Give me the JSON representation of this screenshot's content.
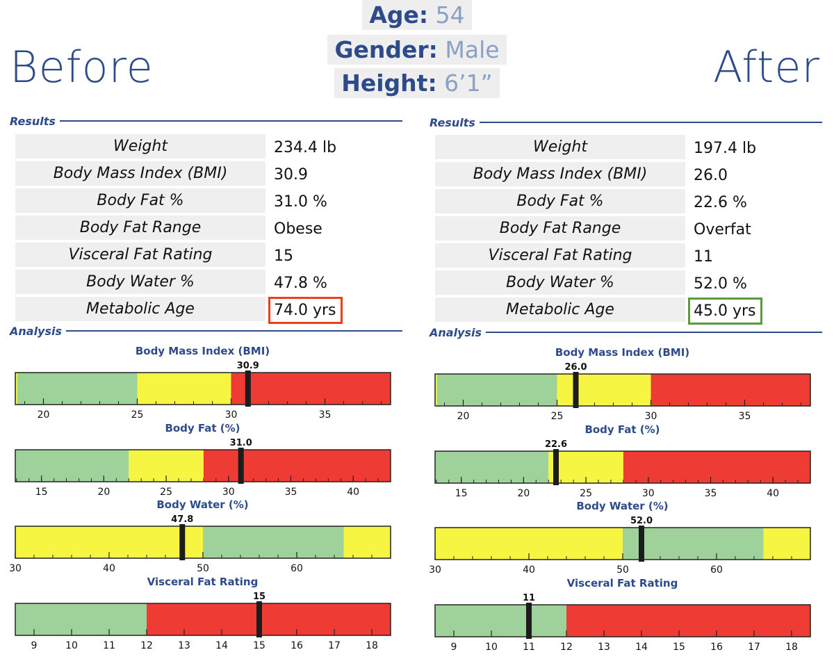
{
  "header": {
    "before_title": "Before",
    "after_title": "After",
    "info": [
      {
        "key": "Age:",
        "value": "54"
      },
      {
        "key": "Gender:",
        "value": "Male"
      },
      {
        "key": "Height:",
        "value": "6’1”"
      }
    ]
  },
  "colors": {
    "heading_blue": "#2d4a8a",
    "zone_green": "#9ed29a",
    "zone_yellow": "#f5f542",
    "zone_red": "#ee3b33",
    "highlight_red": "#e8401c",
    "highlight_green": "#5a9a3a"
  },
  "labels": {
    "results": "Results",
    "analysis": "Analysis"
  },
  "before": {
    "results": [
      {
        "label": "Weight",
        "value": "234.4 lb"
      },
      {
        "label": "Body Mass Index (BMI)",
        "value": "30.9"
      },
      {
        "label": "Body Fat %",
        "value": "31.0 %"
      },
      {
        "label": "Body Fat Range",
        "value": "Obese"
      },
      {
        "label": "Visceral Fat Rating",
        "value": "15"
      },
      {
        "label": "Body Water %",
        "value": "47.8 %"
      },
      {
        "label": "Metabolic Age",
        "value": "74.0 yrs"
      }
    ]
  },
  "after": {
    "results": [
      {
        "label": "Weight",
        "value": "197.4 lb"
      },
      {
        "label": "Body Mass Index (BMI)",
        "value": "26.0"
      },
      {
        "label": "Body Fat %",
        "value": "22.6 %"
      },
      {
        "label": "Body Fat Range",
        "value": "Overfat"
      },
      {
        "label": "Visceral Fat Rating",
        "value": "11"
      },
      {
        "label": "Body Water %",
        "value": "52.0 %"
      },
      {
        "label": "Metabolic Age",
        "value": "45.0 yrs"
      }
    ]
  },
  "chart_data": [
    {
      "type": "bar",
      "panel": "before",
      "title": "Body Mass Index (BMI)",
      "range": [
        18.5,
        38.5
      ],
      "zones": [
        {
          "from": 18.5,
          "to": 18.6,
          "color": "yellow"
        },
        {
          "from": 18.6,
          "to": 25,
          "color": "green"
        },
        {
          "from": 25,
          "to": 30,
          "color": "yellow"
        },
        {
          "from": 30,
          "to": 38.5,
          "color": "red"
        }
      ],
      "ticks": [
        "20",
        "25",
        "30",
        "35"
      ],
      "minor_step": 1,
      "marker": 30.9,
      "marker_label": "30.9"
    },
    {
      "type": "bar",
      "panel": "before",
      "title": "Body Fat (%)",
      "range": [
        12.9,
        43
      ],
      "zones": [
        {
          "from": 12.9,
          "to": 22,
          "color": "green"
        },
        {
          "from": 22,
          "to": 28,
          "color": "yellow"
        },
        {
          "from": 28,
          "to": 43,
          "color": "red"
        }
      ],
      "ticks": [
        "15",
        "20",
        "25",
        "30",
        "35",
        "40"
      ],
      "minor_step": 1,
      "marker": 31.0,
      "marker_label": "31.0"
    },
    {
      "type": "bar",
      "panel": "before",
      "title": "Body Water (%)",
      "range": [
        30,
        70
      ],
      "zones": [
        {
          "from": 30,
          "to": 50,
          "color": "yellow"
        },
        {
          "from": 50,
          "to": 65,
          "color": "green"
        },
        {
          "from": 65,
          "to": 70,
          "color": "yellow"
        }
      ],
      "ticks": [
        "30",
        "40",
        "50",
        "60"
      ],
      "minor_step": 2,
      "marker": 47.8,
      "marker_label": "47.8"
    },
    {
      "type": "bar",
      "panel": "before",
      "title": "Visceral Fat Rating",
      "range": [
        8.5,
        18.5
      ],
      "zones": [
        {
          "from": 8.5,
          "to": 12,
          "color": "green"
        },
        {
          "from": 12,
          "to": 18.5,
          "color": "red"
        }
      ],
      "ticks": [
        "9",
        "10",
        "11",
        "12",
        "13",
        "14",
        "15",
        "16",
        "17",
        "18"
      ],
      "minor_step": 1,
      "marker": 15,
      "marker_label": "15"
    },
    {
      "type": "bar",
      "panel": "after",
      "title": "Body Mass Index (BMI)",
      "range": [
        18.5,
        38.5
      ],
      "zones": [
        {
          "from": 18.5,
          "to": 18.6,
          "color": "yellow"
        },
        {
          "from": 18.6,
          "to": 25,
          "color": "green"
        },
        {
          "from": 25,
          "to": 30,
          "color": "yellow"
        },
        {
          "from": 30,
          "to": 38.5,
          "color": "red"
        }
      ],
      "ticks": [
        "20",
        "25",
        "30",
        "35"
      ],
      "minor_step": 1,
      "marker": 26.0,
      "marker_label": "26.0"
    },
    {
      "type": "bar",
      "panel": "after",
      "title": "Body Fat (%)",
      "range": [
        12.9,
        43
      ],
      "zones": [
        {
          "from": 12.9,
          "to": 22,
          "color": "green"
        },
        {
          "from": 22,
          "to": 28,
          "color": "yellow"
        },
        {
          "from": 28,
          "to": 43,
          "color": "red"
        }
      ],
      "ticks": [
        "15",
        "20",
        "25",
        "30",
        "35",
        "40"
      ],
      "minor_step": 1,
      "marker": 22.6,
      "marker_label": "22.6"
    },
    {
      "type": "bar",
      "panel": "after",
      "title": "Body Water (%)",
      "range": [
        30,
        70
      ],
      "zones": [
        {
          "from": 30,
          "to": 50,
          "color": "yellow"
        },
        {
          "from": 50,
          "to": 65,
          "color": "green"
        },
        {
          "from": 65,
          "to": 70,
          "color": "yellow"
        }
      ],
      "ticks": [
        "30",
        "40",
        "50",
        "60"
      ],
      "minor_step": 2,
      "marker": 52.0,
      "marker_label": "52.0"
    },
    {
      "type": "bar",
      "panel": "after",
      "title": "Visceral Fat Rating",
      "range": [
        8.5,
        18.5
      ],
      "zones": [
        {
          "from": 8.5,
          "to": 12,
          "color": "green"
        },
        {
          "from": 12,
          "to": 18.5,
          "color": "red"
        }
      ],
      "ticks": [
        "9",
        "10",
        "11",
        "12",
        "13",
        "14",
        "15",
        "16",
        "17",
        "18"
      ],
      "minor_step": 1,
      "marker": 11,
      "marker_label": "11"
    }
  ]
}
